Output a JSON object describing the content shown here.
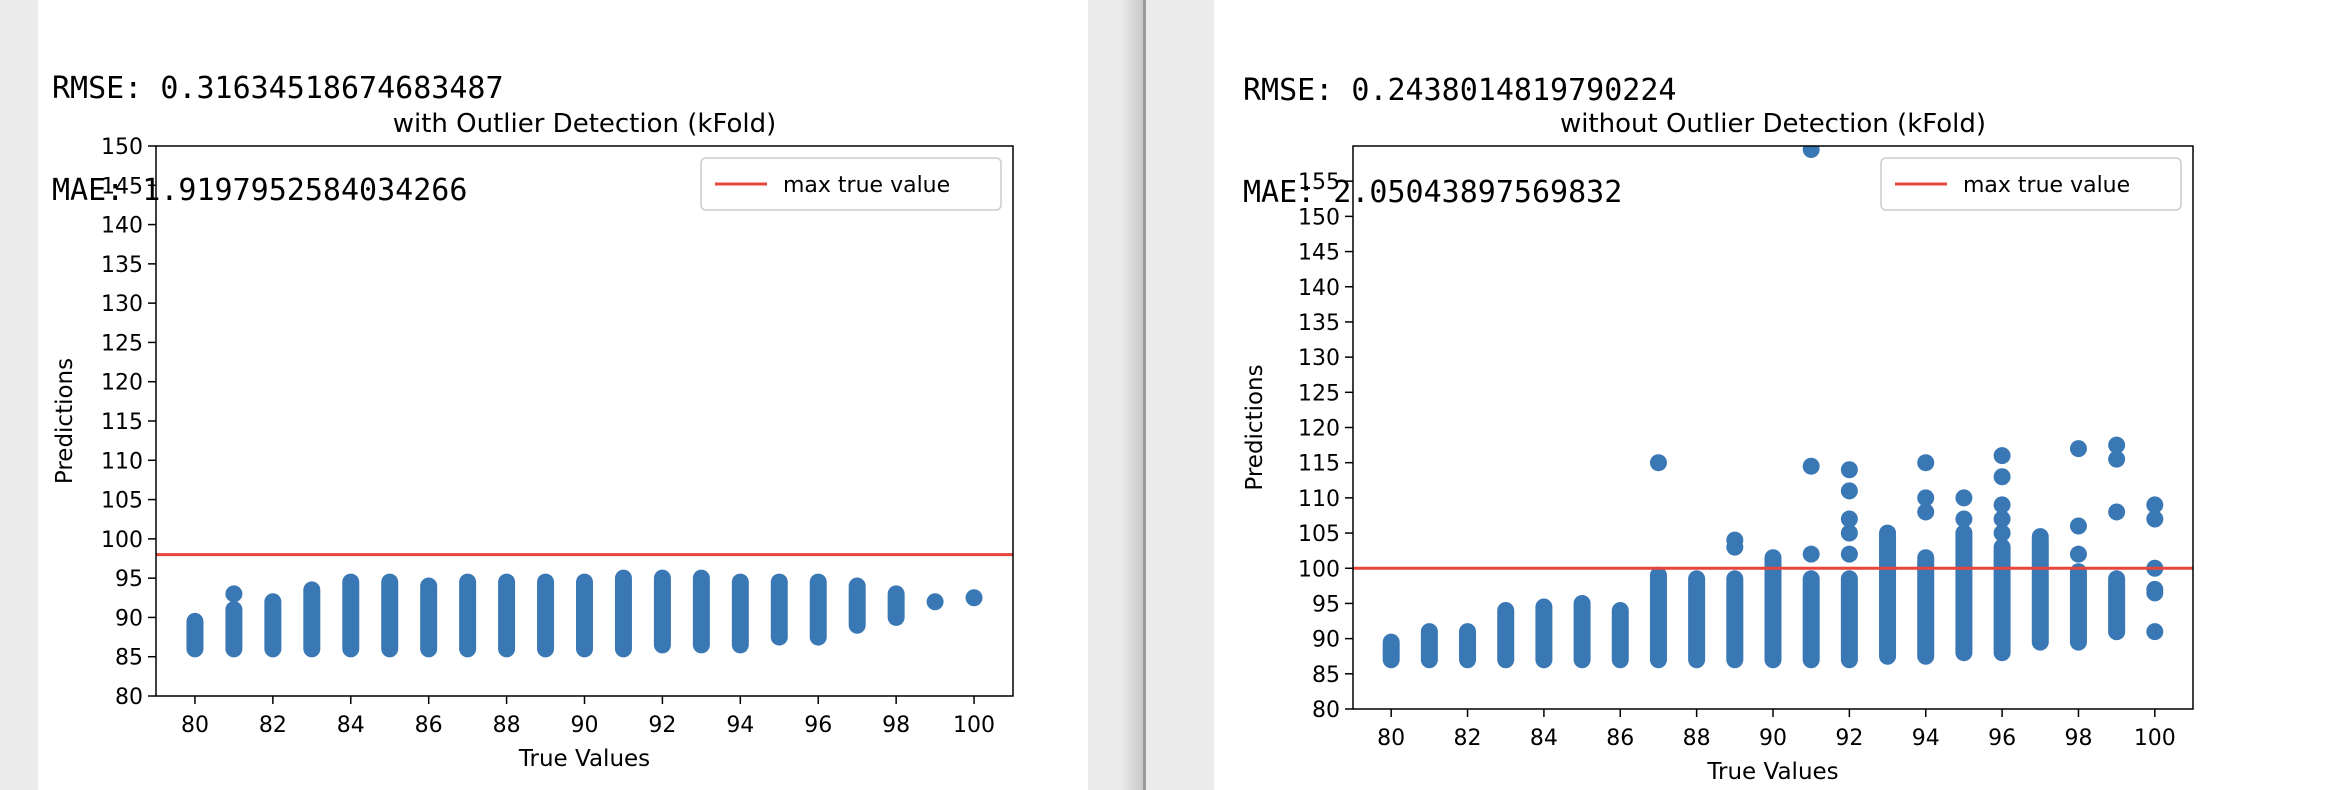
{
  "left": {
    "rmse_text": "RMSE: 0.31634518674683487",
    "mae_text": "MAE: 1.9197952584034266"
  },
  "right": {
    "rmse_text": "RMSE: 0.2438014819790224",
    "mae_text": "MAE: 2.05043897569832"
  },
  "chart_data": [
    {
      "type": "scatter",
      "title": "with Outlier Detection (kFold)",
      "xlabel": "True Values",
      "ylabel": "Predictions",
      "xlim": [
        79,
        101
      ],
      "ylim": [
        80,
        150
      ],
      "xticks": [
        80,
        82,
        84,
        86,
        88,
        90,
        92,
        94,
        96,
        98,
        100
      ],
      "yticks": [
        80,
        85,
        90,
        95,
        100,
        105,
        110,
        115,
        120,
        125,
        130,
        135,
        140,
        145,
        150
      ],
      "point_color": "#3a78b5",
      "line_color": "#e8453c",
      "legend": {
        "label": "max true value",
        "position": "top-right"
      },
      "hline": 98,
      "ranges": [
        {
          "x": 80,
          "ymin": 86,
          "ymax": 89.5
        },
        {
          "x": 81,
          "ymin": 86,
          "ymax": 91
        },
        {
          "x": 82,
          "ymin": 86,
          "ymax": 92
        },
        {
          "x": 83,
          "ymin": 86,
          "ymax": 93.5
        },
        {
          "x": 84,
          "ymin": 86,
          "ymax": 94.5
        },
        {
          "x": 85,
          "ymin": 86,
          "ymax": 94.5
        },
        {
          "x": 86,
          "ymin": 86,
          "ymax": 94
        },
        {
          "x": 87,
          "ymin": 86,
          "ymax": 94.5
        },
        {
          "x": 88,
          "ymin": 86,
          "ymax": 94.5
        },
        {
          "x": 89,
          "ymin": 86,
          "ymax": 94.5
        },
        {
          "x": 90,
          "ymin": 86,
          "ymax": 94.5
        },
        {
          "x": 91,
          "ymin": 86,
          "ymax": 95
        },
        {
          "x": 92,
          "ymin": 86.5,
          "ymax": 95
        },
        {
          "x": 93,
          "ymin": 86.5,
          "ymax": 95
        },
        {
          "x": 94,
          "ymin": 86.5,
          "ymax": 94.5
        },
        {
          "x": 95,
          "ymin": 87.5,
          "ymax": 94.5
        },
        {
          "x": 96,
          "ymin": 87.5,
          "ymax": 94.5
        },
        {
          "x": 97,
          "ymin": 89,
          "ymax": 94
        },
        {
          "x": 98,
          "ymin": 90,
          "ymax": 93
        }
      ],
      "points": [
        {
          "x": 81,
          "y": 93
        },
        {
          "x": 99,
          "y": 92
        },
        {
          "x": 100,
          "y": 92.5
        }
      ]
    },
    {
      "type": "scatter",
      "title": "without Outlier Detection (kFold)",
      "xlabel": "True Values",
      "ylabel": "Predictions",
      "xlim": [
        79,
        101
      ],
      "ylim": [
        80,
        160
      ],
      "xticks": [
        80,
        82,
        84,
        86,
        88,
        90,
        92,
        94,
        96,
        98,
        100
      ],
      "yticks": [
        80,
        85,
        90,
        95,
        100,
        105,
        110,
        115,
        120,
        125,
        130,
        135,
        140,
        145,
        150,
        155
      ],
      "point_color": "#3a78b5",
      "line_color": "#e8453c",
      "legend": {
        "label": "max true value",
        "position": "top-right"
      },
      "hline": 100,
      "ranges": [
        {
          "x": 80,
          "ymin": 87,
          "ymax": 89.5
        },
        {
          "x": 81,
          "ymin": 87,
          "ymax": 91
        },
        {
          "x": 82,
          "ymin": 87,
          "ymax": 91
        },
        {
          "x": 83,
          "ymin": 87,
          "ymax": 94
        },
        {
          "x": 84,
          "ymin": 87,
          "ymax": 94.5
        },
        {
          "x": 85,
          "ymin": 87,
          "ymax": 95
        },
        {
          "x": 86,
          "ymin": 87,
          "ymax": 94
        },
        {
          "x": 87,
          "ymin": 87,
          "ymax": 99
        },
        {
          "x": 88,
          "ymin": 87,
          "ymax": 98.5
        },
        {
          "x": 89,
          "ymin": 87,
          "ymax": 98.5
        },
        {
          "x": 90,
          "ymin": 87,
          "ymax": 101.5
        },
        {
          "x": 91,
          "ymin": 87,
          "ymax": 98.5
        },
        {
          "x": 92,
          "ymin": 87,
          "ymax": 98.5
        },
        {
          "x": 93,
          "ymin": 87.5,
          "ymax": 105
        },
        {
          "x": 94,
          "ymin": 87.5,
          "ymax": 101.5
        },
        {
          "x": 95,
          "ymin": 88,
          "ymax": 105
        },
        {
          "x": 96,
          "ymin": 88,
          "ymax": 103
        },
        {
          "x": 97,
          "ymin": 89.5,
          "ymax": 104
        },
        {
          "x": 98,
          "ymin": 89.5,
          "ymax": 99.5
        },
        {
          "x": 99,
          "ymin": 91,
          "ymax": 98.5
        }
      ],
      "points": [
        {
          "x": 87,
          "y": 115
        },
        {
          "x": 89,
          "y": 104
        },
        {
          "x": 89,
          "y": 103
        },
        {
          "x": 90,
          "y": 100
        },
        {
          "x": 91,
          "y": 159.5
        },
        {
          "x": 91,
          "y": 114.5
        },
        {
          "x": 91,
          "y": 102
        },
        {
          "x": 92,
          "y": 114
        },
        {
          "x": 92,
          "y": 111
        },
        {
          "x": 92,
          "y": 107
        },
        {
          "x": 92,
          "y": 105
        },
        {
          "x": 92,
          "y": 102
        },
        {
          "x": 94,
          "y": 115
        },
        {
          "x": 94,
          "y": 110
        },
        {
          "x": 94,
          "y": 108
        },
        {
          "x": 95,
          "y": 110
        },
        {
          "x": 95,
          "y": 107
        },
        {
          "x": 96,
          "y": 116
        },
        {
          "x": 96,
          "y": 113
        },
        {
          "x": 96,
          "y": 109
        },
        {
          "x": 96,
          "y": 107
        },
        {
          "x": 96,
          "y": 105
        },
        {
          "x": 97,
          "y": 104.5
        },
        {
          "x": 98,
          "y": 117
        },
        {
          "x": 98,
          "y": 106
        },
        {
          "x": 98,
          "y": 102
        },
        {
          "x": 99,
          "y": 117.5
        },
        {
          "x": 99,
          "y": 115.5
        },
        {
          "x": 99,
          "y": 108
        },
        {
          "x": 99,
          "y": 91
        },
        {
          "x": 100,
          "y": 109
        },
        {
          "x": 100,
          "y": 107
        },
        {
          "x": 100,
          "y": 100
        },
        {
          "x": 100,
          "y": 97
        },
        {
          "x": 100,
          "y": 96.5
        },
        {
          "x": 100,
          "y": 91
        }
      ]
    }
  ]
}
